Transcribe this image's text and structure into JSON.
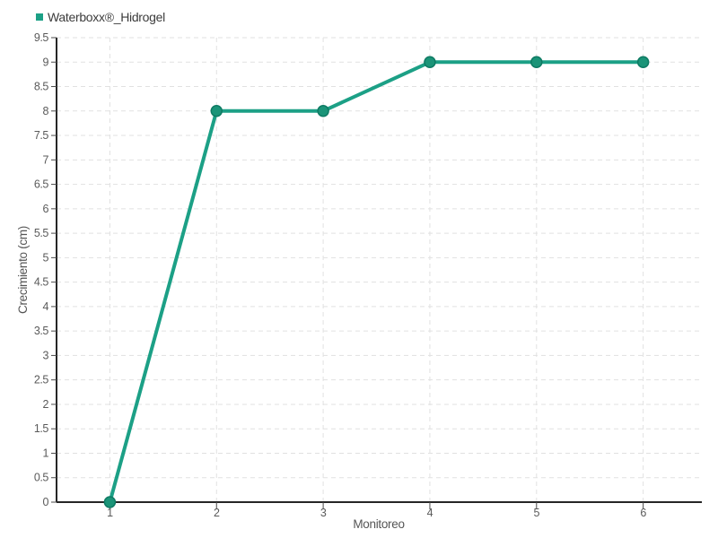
{
  "legend": {
    "items": [
      {
        "label": "Waterboxx®_Hidrogel",
        "color": "#1ca086"
      }
    ]
  },
  "chart_data": {
    "type": "line",
    "title": "",
    "xlabel": "Monitoreo",
    "ylabel": "Crecimiento (cm)",
    "x": [
      1,
      2,
      3,
      4,
      5,
      6
    ],
    "series": [
      {
        "name": "Waterboxx®_Hidrogel",
        "values": [
          0,
          8,
          8,
          9,
          9,
          9
        ],
        "line_color": "#1ca086",
        "line_width": 4,
        "marker_fill": "#1b9478",
        "marker_stroke": "#0e7a63",
        "marker_radius": 6
      }
    ],
    "xlim": [
      0.5,
      6.55
    ],
    "ylim": [
      0,
      9.5
    ],
    "x_ticks": [
      "1",
      "2",
      "3",
      "4",
      "5",
      "6"
    ],
    "y_ticks": [
      "0",
      "0.5",
      "1",
      "1.5",
      "2",
      "2.5",
      "3",
      "3.5",
      "4",
      "4.5",
      "5",
      "5.5",
      "6",
      "6.5",
      "7",
      "7.5",
      "8",
      "8.5",
      "9",
      "9.5"
    ],
    "grid": true,
    "grid_style": "dashed",
    "legend_position": "top-left",
    "colors": {
      "background": "#ffffff",
      "axis": "#262626",
      "grid": "#e1e1e1",
      "tick_mark": "#4a4a4a",
      "tick_text": "#5a5a5a",
      "axis_title": "#555555"
    }
  }
}
